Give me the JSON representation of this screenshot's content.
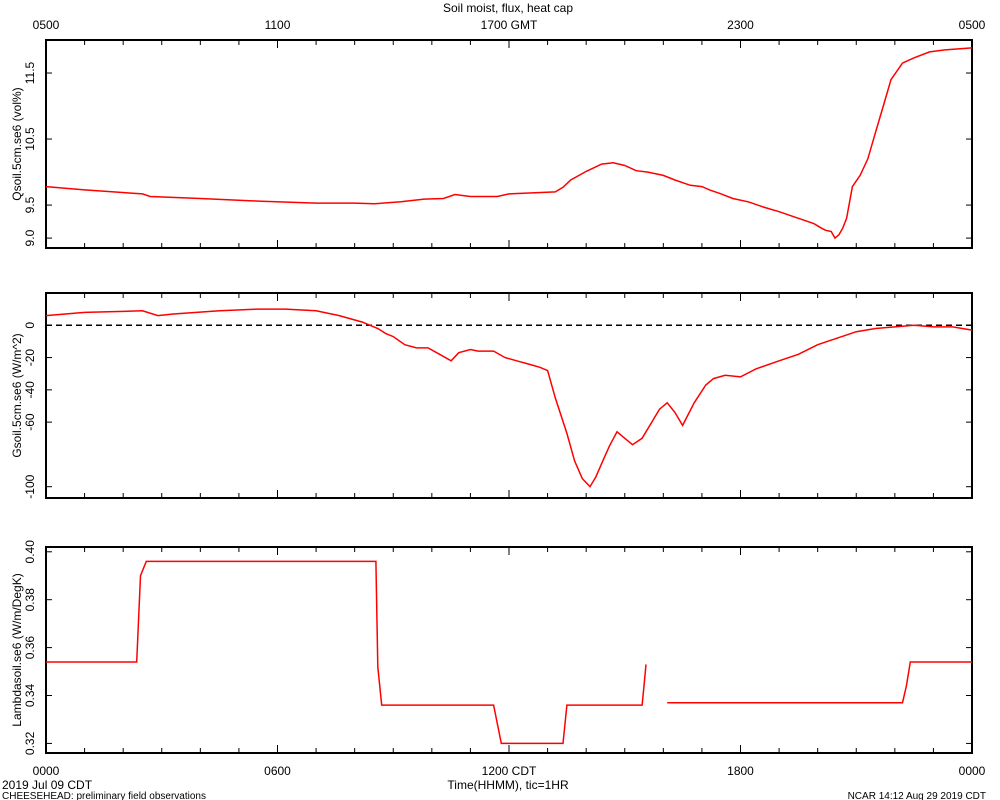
{
  "chart_data": {
    "type": "line",
    "title": "Soil moist, flux, heat cap",
    "bottom_axis": {
      "label": "Time(HHMM), tic=1HR",
      "tick_labels": [
        "0000",
        "0600",
        "1200 CDT",
        "1800",
        "0000"
      ],
      "range_hours": [
        0,
        24
      ]
    },
    "top_axis": {
      "tick_labels": [
        "0500",
        "1100",
        "1700 GMT",
        "2300",
        "0500"
      ]
    },
    "date_label": "2019 Jul 09 CDT",
    "footer_left": "CHEESEHEAD: preliminary field observations",
    "footer_right": "NCAR 14:12 Aug 29 2019 CDT",
    "panels": [
      {
        "ylabel": "Qsoil.5cm.se6 (vol%)",
        "ylim": [
          8.85,
          12.0
        ],
        "yticks": [
          9.0,
          9.5,
          10.5,
          11.5
        ],
        "ytick_labels": [
          "9.0",
          "9.5",
          "10.5",
          "11.5"
        ],
        "color": "#ff0000",
        "series": [
          {
            "x": [
              0,
              1,
              2.5,
              2.7,
              4,
              5.5,
              7,
              8,
              8.5,
              9.2,
              9.8,
              10.3,
              10.6,
              11,
              11.7,
              12,
              13.2,
              13.4,
              13.6,
              14,
              14.4,
              14.7,
              15,
              15.3,
              15.6,
              16,
              16.3,
              16.7,
              17,
              17.2,
              17.5,
              17.8,
              18.2,
              18.6,
              19,
              19.5,
              19.9,
              20.1,
              20.2,
              20.35,
              20.45,
              20.55,
              20.65,
              20.75,
              20.9,
              21.1,
              21.3,
              21.5,
              21.7,
              21.9,
              22.2,
              22.5,
              22.9,
              23.3,
              24
            ],
            "y": [
              9.78,
              9.73,
              9.67,
              9.63,
              9.6,
              9.56,
              9.53,
              9.53,
              9.52,
              9.55,
              9.59,
              9.6,
              9.66,
              9.63,
              9.63,
              9.67,
              9.7,
              9.77,
              9.88,
              10.01,
              10.12,
              10.14,
              10.1,
              10.02,
              10.0,
              9.95,
              9.88,
              9.8,
              9.78,
              9.73,
              9.67,
              9.6,
              9.55,
              9.47,
              9.4,
              9.3,
              9.22,
              9.15,
              9.12,
              9.1,
              9.0,
              9.05,
              9.15,
              9.3,
              9.78,
              9.95,
              10.2,
              10.6,
              11.0,
              11.4,
              11.65,
              11.73,
              11.82,
              11.85,
              11.88
            ]
          }
        ]
      },
      {
        "ylabel": "Gsoil.5cm.se6 (W/m^2)",
        "ylim": [
          -107,
          20
        ],
        "yticks": [
          0,
          -20,
          -40,
          -60,
          -100
        ],
        "ytick_labels": [
          "0",
          "-20",
          "-40",
          "-60",
          "-100"
        ],
        "zero_line": true,
        "color": "#ff0000",
        "series": [
          {
            "x": [
              0,
              1,
              2.5,
              2.9,
              3.3,
              4.5,
              5.5,
              6.2,
              7,
              7.6,
              8.2,
              8.6,
              8.8,
              9,
              9.3,
              9.6,
              9.9,
              10.2,
              10.5,
              10.7,
              11,
              11.2,
              11.6,
              11.9,
              12.2,
              12.5,
              12.8,
              13,
              13.2,
              13.5,
              13.7,
              13.9,
              14.1,
              14.25,
              14.45,
              14.6,
              14.8,
              15,
              15.2,
              15.45,
              15.7,
              15.9,
              16.1,
              16.3,
              16.5,
              16.8,
              17.1,
              17.3,
              17.6,
              18,
              18.4,
              19,
              19.5,
              20,
              20.5,
              21,
              21.5,
              22,
              22.5,
              23,
              23.5,
              24
            ],
            "y": [
              6,
              8,
              9,
              6,
              7,
              9,
              10,
              10,
              9,
              6,
              2,
              -2,
              -5,
              -7,
              -12,
              -14,
              -14,
              -18,
              -22,
              -17,
              -15,
              -16,
              -16,
              -20,
              -22,
              -24,
              -26,
              -28,
              -45,
              -67,
              -84,
              -95,
              -100,
              -94,
              -83,
              -75,
              -66,
              -70,
              -74,
              -70,
              -60,
              -52,
              -48,
              -54,
              -62,
              -48,
              -37,
              -33,
              -31,
              -32,
              -27,
              -22,
              -18,
              -12,
              -8,
              -4,
              -2,
              -1,
              0,
              -1,
              -1,
              -3
            ]
          }
        ]
      },
      {
        "ylabel": "Lambdasoil.se6 (W/m/DegK)",
        "ylim": [
          0.316,
          0.402
        ],
        "yticks": [
          0.32,
          0.34,
          0.36,
          0.38,
          0.4
        ],
        "ytick_labels": [
          "0.32",
          "0.34",
          "0.36",
          "0.38",
          "0.40"
        ],
        "color": "#ff0000",
        "series": [
          {
            "segments": [
              {
                "x": [
                  0,
                  2.35,
                  2.45,
                  2.6,
                  8.55,
                  8.6,
                  8.7,
                  11.6,
                  11.8,
                  13.4,
                  13.5,
                  15.45,
                  15.5,
                  15.55
                ],
                "y": [
                  0.354,
                  0.354,
                  0.39,
                  0.396,
                  0.396,
                  0.352,
                  0.336,
                  0.336,
                  0.32,
                  0.32,
                  0.336,
                  0.336,
                  0.344,
                  0.353
                ]
              },
              {
                "x": [
                  16.1,
                  22.2,
                  22.3,
                  22.4,
                  24
                ],
                "y": [
                  0.337,
                  0.337,
                  0.344,
                  0.354,
                  0.354
                ]
              }
            ]
          }
        ]
      }
    ]
  }
}
